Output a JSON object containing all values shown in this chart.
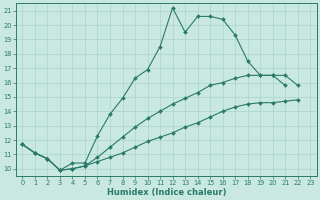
{
  "xlabel": "Humidex (Indice chaleur)",
  "xlim": [
    -0.5,
    23.5
  ],
  "ylim": [
    9.5,
    21.5
  ],
  "xticks": [
    0,
    1,
    2,
    3,
    4,
    5,
    6,
    7,
    8,
    9,
    10,
    11,
    12,
    13,
    14,
    15,
    16,
    17,
    18,
    19,
    20,
    21,
    22,
    23
  ],
  "yticks": [
    10,
    11,
    12,
    13,
    14,
    15,
    16,
    17,
    18,
    19,
    20,
    21
  ],
  "bg_color": "#c8e8e0",
  "line_color": "#2a7a6a",
  "grid_color": "#aad4cc",
  "line1_x": [
    0,
    1,
    2,
    3,
    4,
    5,
    6,
    7,
    8,
    9,
    10,
    11,
    12,
    13,
    14,
    15,
    16,
    17,
    18,
    19,
    20,
    21
  ],
  "line1_y": [
    11.7,
    11.1,
    10.7,
    9.9,
    10.4,
    10.4,
    12.3,
    13.8,
    14.9,
    16.3,
    16.9,
    18.5,
    21.2,
    19.5,
    20.6,
    20.6,
    20.4,
    19.3,
    17.5,
    16.5,
    16.5,
    15.8
  ],
  "line2_x": [
    0,
    1,
    2,
    3,
    4,
    5,
    6,
    7,
    8,
    9,
    10,
    11,
    12,
    13,
    14,
    15,
    16,
    17,
    18,
    19,
    20,
    21,
    22
  ],
  "line2_y": [
    11.7,
    11.1,
    10.7,
    9.9,
    10.0,
    10.2,
    10.8,
    11.5,
    12.2,
    12.9,
    13.5,
    14.0,
    14.5,
    14.9,
    15.3,
    15.8,
    16.0,
    16.3,
    16.5,
    16.5,
    16.5,
    16.5,
    15.8
  ],
  "line3_x": [
    0,
    1,
    2,
    3,
    4,
    5,
    6,
    7,
    8,
    9,
    10,
    11,
    12,
    13,
    14,
    15,
    16,
    17,
    18,
    19,
    20,
    21,
    22
  ],
  "line3_y": [
    11.7,
    11.1,
    10.7,
    9.9,
    10.0,
    10.2,
    10.5,
    10.8,
    11.1,
    11.5,
    11.9,
    12.2,
    12.5,
    12.9,
    13.2,
    13.6,
    14.0,
    14.3,
    14.5,
    14.6,
    14.6,
    14.7,
    14.8
  ]
}
